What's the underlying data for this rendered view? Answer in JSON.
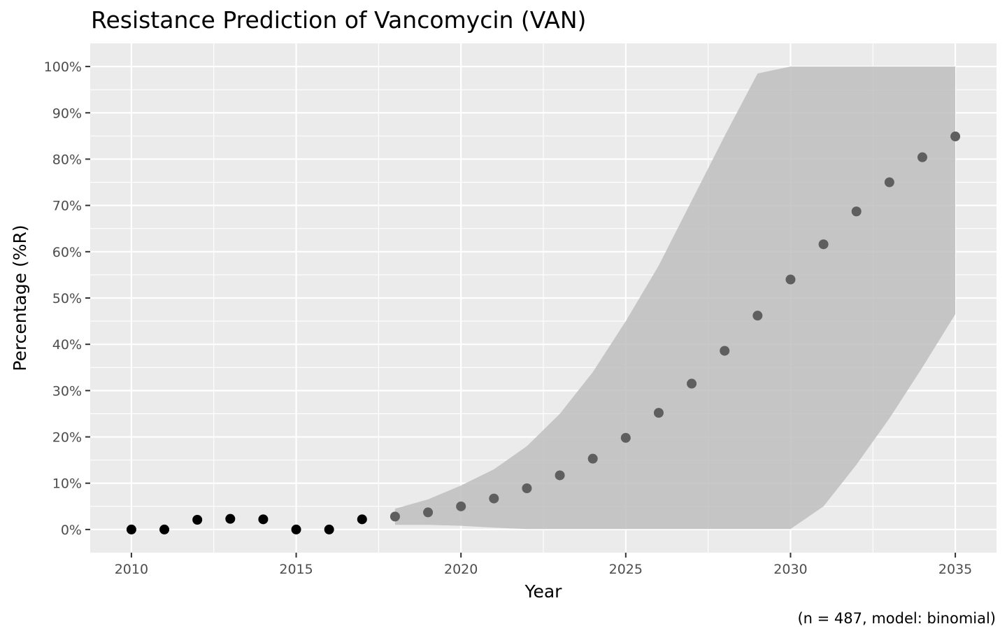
{
  "chart_data": {
    "type": "scatter",
    "title": "Resistance Prediction of Vancomycin (VAN)",
    "xlabel": "Year",
    "ylabel": "Percentage (%R)",
    "caption": "(n = 487, model: binomial)",
    "xlim": [
      2008.75,
      2036.25
    ],
    "ylim": [
      -0.05,
      1.05
    ],
    "x_ticks": [
      2010,
      2015,
      2020,
      2025,
      2030,
      2035
    ],
    "x_tick_labels": [
      "2010",
      "2015",
      "2020",
      "2025",
      "2030",
      "2035"
    ],
    "y_ticks": [
      0,
      0.1,
      0.2,
      0.3,
      0.4,
      0.5,
      0.6,
      0.7,
      0.8,
      0.9,
      1.0
    ],
    "y_tick_labels": [
      "0%",
      "10%",
      "20%",
      "30%",
      "40%",
      "50%",
      "60%",
      "70%",
      "80%",
      "90%",
      "100%"
    ],
    "grid": true,
    "colors": {
      "panel_background": "#ebebeb",
      "grid_line": "#ffffff",
      "ribbon": "#bebebe",
      "observed_point": "#000000",
      "predicted_point": "#5f5f5f",
      "tick_label": "#4d4d4d"
    },
    "series": [
      {
        "kind": "observed",
        "x": [
          2010,
          2011,
          2012,
          2013,
          2014,
          2015,
          2016,
          2017
        ],
        "y": [
          0.0,
          0.0,
          0.021,
          0.023,
          0.022,
          0.0,
          0.0,
          0.022
        ]
      },
      {
        "kind": "predicted",
        "x": [
          2018,
          2019,
          2020,
          2021,
          2022,
          2023,
          2024,
          2025,
          2026,
          2027,
          2028,
          2029,
          2030,
          2031,
          2032,
          2033,
          2034,
          2035
        ],
        "y": [
          0.028,
          0.037,
          0.05,
          0.067,
          0.089,
          0.117,
          0.153,
          0.198,
          0.252,
          0.315,
          0.386,
          0.462,
          0.54,
          0.616,
          0.687,
          0.75,
          0.804,
          0.849
        ],
        "ci_lower": [
          0.01,
          0.01,
          0.008,
          0.004,
          0.001,
          0.001,
          0.001,
          0.001,
          0.001,
          0.001,
          0.001,
          0.001,
          0.001,
          0.05,
          0.14,
          0.24,
          0.35,
          0.465
        ],
        "ci_upper": [
          0.045,
          0.065,
          0.095,
          0.13,
          0.18,
          0.25,
          0.34,
          0.45,
          0.57,
          0.71,
          0.85,
          0.985,
          1.0,
          1.0,
          1.0,
          1.0,
          1.0,
          1.0
        ]
      }
    ]
  }
}
